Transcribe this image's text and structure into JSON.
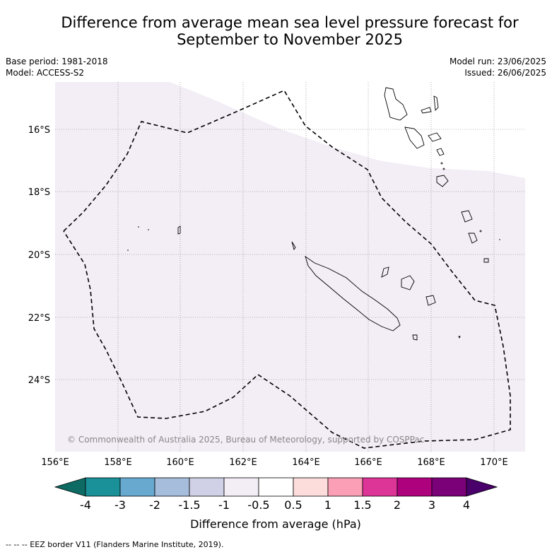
{
  "title_line1": "Difference from average mean sea level pressure forecast for",
  "title_line2": "September to November 2025",
  "base_period": "Base period: 1981-2018",
  "model": "Model: ACCESS-S2",
  "model_run": "Model run: 23/06/2025",
  "issued": "Issued: 26/06/2025",
  "lat_labels": [
    "16°S",
    "18°S",
    "20°S",
    "22°S",
    "24°S"
  ],
  "lon_labels": [
    "156°E",
    "158°E",
    "160°E",
    "162°E",
    "164°E",
    "166°E",
    "168°E",
    "170°E"
  ],
  "copyright": "© Commonwealth of Australia 2025, Bureau of Meteorology, supported by COSPPac",
  "colorbar": {
    "ticks": [
      "-4",
      "-3",
      "-2",
      "-1.5",
      "-1",
      "-0.5",
      "0.5",
      "1",
      "1.5",
      "2",
      "3",
      "4"
    ],
    "colors": [
      "#0d6b63",
      "#1a9198",
      "#67a9cf",
      "#a6bddb",
      "#d0d1e6",
      "#f3edf6",
      "#ffffff",
      "#fddcdc",
      "#fa9fb5",
      "#dd3497",
      "#ae017e",
      "#7a0177",
      "#49006a"
    ],
    "label": "Difference from average (hPa)"
  },
  "map_fill_color": "#f3edf6",
  "footer": "--  --  -- EEZ border V11 (Flanders Marine Institute, 2019)."
}
